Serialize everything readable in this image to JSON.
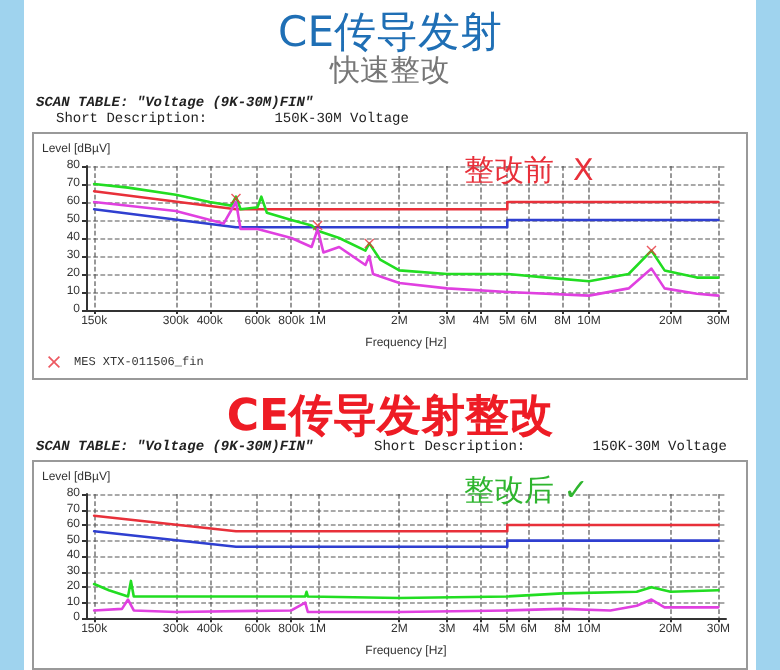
{
  "chart_data": [
    {
      "type": "line",
      "title": "CE传导发射",
      "subtitle": "快速整改",
      "xlabel": "Frequency [Hz]",
      "ylabel": "Level [dBµV]",
      "annotations": [
        "SCAN TABLE: \"Voltage (9K-30M)FIN\"",
        "Short Description:        150K-30M Voltage",
        "整改前  X"
      ],
      "log": "x",
      "grid": true,
      "legend": "bottom left",
      "marker": "none",
      "line_style": "solid",
      "xlim": [
        140000,
        32000000
      ],
      "ylim": [
        0,
        80
      ],
      "yticks": [
        0,
        10,
        20,
        30,
        40,
        50,
        60,
        70,
        80
      ],
      "xticks": [
        {
          "value": 150000,
          "label": "150k"
        },
        {
          "value": 300000,
          "label": "300k"
        },
        {
          "value": 400000,
          "label": "400k"
        },
        {
          "value": 600000,
          "label": "600k"
        },
        {
          "value": 800000,
          "label": "800k"
        },
        {
          "value": 1000000,
          "label": "1M"
        },
        {
          "value": 2000000,
          "label": "2M"
        },
        {
          "value": 3000000,
          "label": "3M"
        },
        {
          "value": 4000000,
          "label": "4M"
        },
        {
          "value": 5000000,
          "label": "5M"
        },
        {
          "value": 6000000,
          "label": "6M"
        },
        {
          "value": 8000000,
          "label": "8M"
        },
        {
          "value": 10000000,
          "label": "10M"
        },
        {
          "value": 20000000,
          "label": "20M"
        },
        {
          "value": 30000000,
          "label": "30M"
        }
      ],
      "series": [
        {
          "color": "#e8303a",
          "x": [
            150000,
            500000,
            5000000,
            5000000,
            30000000
          ],
          "values": [
            66,
            56,
            56,
            60,
            60
          ]
        },
        {
          "color": "#2f3fd0",
          "x": [
            150000,
            500000,
            5000000,
            5000000,
            30000000
          ],
          "values": [
            56,
            46,
            46,
            50,
            50
          ]
        },
        {
          "color": "#22dd22",
          "x": [
            150000,
            200000,
            300000,
            400000,
            480000,
            500000,
            520000,
            600000,
            620000,
            650000,
            800000,
            950000,
            1000000,
            1200000,
            1500000,
            1550000,
            1700000,
            2000000,
            3000000,
            5000000,
            7000000,
            10000000,
            14000000,
            17000000,
            19000000,
            25000000,
            30000000
          ],
          "values": [
            70,
            68,
            64,
            60,
            58,
            63,
            56,
            57,
            63,
            54,
            50,
            47,
            44,
            40,
            33,
            37,
            28,
            22,
            20,
            20,
            18,
            16,
            20,
            33,
            22,
            18,
            18
          ]
        },
        {
          "color": "#e040e0",
          "x": [
            150000,
            300000,
            450000,
            500000,
            520000,
            600000,
            800000,
            950000,
            1000000,
            1050000,
            1200000,
            1500000,
            1550000,
            1600000,
            2000000,
            3000000,
            5000000,
            10000000,
            14000000,
            17000000,
            19000000,
            25000000,
            30000000
          ],
          "values": [
            60,
            55,
            48,
            60,
            45,
            45,
            40,
            35,
            45,
            32,
            35,
            25,
            30,
            20,
            15,
            12,
            10,
            8,
            12,
            23,
            12,
            9,
            8
          ]
        },
        {
          "type": "scatter",
          "name": "MES XTX-011506_fin",
          "marker": "cross",
          "color": "#e8303a",
          "x": [
            500000,
            1000000,
            1550000,
            17000000
          ],
          "values": [
            62,
            47,
            37,
            33
          ]
        }
      ]
    },
    {
      "type": "line",
      "title": "CE传导发射整改",
      "xlabel": "Frequency [Hz]",
      "ylabel": "Level [dBµV]",
      "annotations": [
        "SCAN TABLE: \"Voltage (9K-30M)FIN\"",
        "Short Description:        150K-30M Voltage",
        "整改后 ✓"
      ],
      "log": "x",
      "grid": true,
      "marker": "none",
      "line_style": "solid",
      "xlim": [
        140000,
        32000000
      ],
      "ylim": [
        0,
        80
      ],
      "yticks": [
        0,
        10,
        20,
        30,
        40,
        50,
        60,
        70,
        80
      ],
      "xticks": [
        {
          "value": 150000,
          "label": "150k"
        },
        {
          "value": 300000,
          "label": "300k"
        },
        {
          "value": 400000,
          "label": "400k"
        },
        {
          "value": 600000,
          "label": "600k"
        },
        {
          "value": 800000,
          "label": "800k"
        },
        {
          "value": 1000000,
          "label": "1M"
        },
        {
          "value": 2000000,
          "label": "2M"
        },
        {
          "value": 3000000,
          "label": "3M"
        },
        {
          "value": 4000000,
          "label": "4M"
        },
        {
          "value": 5000000,
          "label": "5M"
        },
        {
          "value": 6000000,
          "label": "6M"
        },
        {
          "value": 8000000,
          "label": "8M"
        },
        {
          "value": 10000000,
          "label": "10M"
        },
        {
          "value": 20000000,
          "label": "20M"
        },
        {
          "value": 30000000,
          "label": "30M"
        }
      ],
      "series": [
        {
          "color": "#e8303a",
          "x": [
            150000,
            500000,
            5000000,
            5000000,
            30000000
          ],
          "values": [
            66,
            56,
            56,
            60,
            60
          ]
        },
        {
          "color": "#2f3fd0",
          "x": [
            150000,
            500000,
            5000000,
            5000000,
            30000000
          ],
          "values": [
            56,
            46,
            46,
            50,
            50
          ]
        },
        {
          "color": "#22dd22",
          "x": [
            150000,
            170000,
            200000,
            205000,
            210000,
            300000,
            900000,
            910000,
            920000,
            2000000,
            5000000,
            8000000,
            15000000,
            17000000,
            20000000,
            30000000
          ],
          "values": [
            22,
            18,
            14,
            24,
            14,
            14,
            14,
            17,
            14,
            13,
            14,
            16,
            17,
            20,
            17,
            18
          ]
        },
        {
          "color": "#e040e0",
          "x": [
            150000,
            190000,
            200000,
            210000,
            300000,
            800000,
            900000,
            920000,
            2000000,
            5000000,
            8000000,
            12000000,
            15000000,
            17000000,
            19000000,
            30000000
          ],
          "values": [
            5,
            6,
            12,
            5,
            4,
            5,
            10,
            4,
            4,
            5,
            6,
            5,
            8,
            12,
            7,
            7
          ]
        }
      ]
    }
  ]
}
